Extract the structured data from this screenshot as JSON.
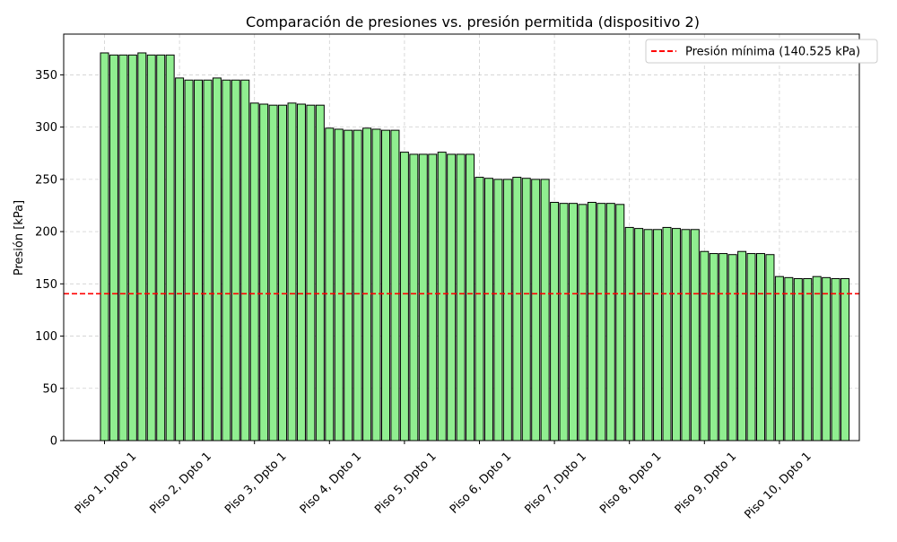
{
  "chart_data": {
    "type": "bar",
    "title": "Comparación de presiones vs. presión permitida (dispositivo 2)",
    "xlabel": "",
    "ylabel": "Presión [kPa]",
    "ylim": [
      0,
      389
    ],
    "yticks": [
      0,
      50,
      100,
      150,
      200,
      250,
      300,
      350
    ],
    "grid": true,
    "legend_position": "top-right",
    "bar_color": "#90ee90",
    "bar_edge_color": "#000000",
    "xtick_labels": [
      "Piso 1, Dpto 1",
      "Piso 2, Dpto 1",
      "Piso 3, Dpto 1",
      "Piso 4, Dpto 1",
      "Piso 5, Dpto 1",
      "Piso 6, Dpto 1",
      "Piso 7, Dpto 1",
      "Piso 8, Dpto 1",
      "Piso 9, Dpto 1",
      "Piso 10, Dpto 1"
    ],
    "bars_per_floor": 8,
    "values": [
      371,
      369,
      369,
      369,
      371,
      369,
      369,
      369,
      347,
      345,
      345,
      345,
      347,
      345,
      345,
      345,
      323,
      322,
      321,
      321,
      323,
      322,
      321,
      321,
      299,
      298,
      297,
      297,
      299,
      298,
      297,
      297,
      276,
      274,
      274,
      274,
      276,
      274,
      274,
      274,
      252,
      251,
      250,
      250,
      252,
      251,
      250,
      250,
      228,
      227,
      227,
      226,
      228,
      227,
      227,
      226,
      204,
      203,
      202,
      202,
      204,
      203,
      202,
      202,
      181,
      179,
      179,
      178,
      181,
      179,
      179,
      178,
      157,
      156,
      155,
      155,
      157,
      156,
      155,
      155
    ],
    "reference_line": {
      "value": 140.525,
      "label": "Presión mínima (140.525 kPa)",
      "color": "#ff0000",
      "style": "dashed"
    }
  }
}
